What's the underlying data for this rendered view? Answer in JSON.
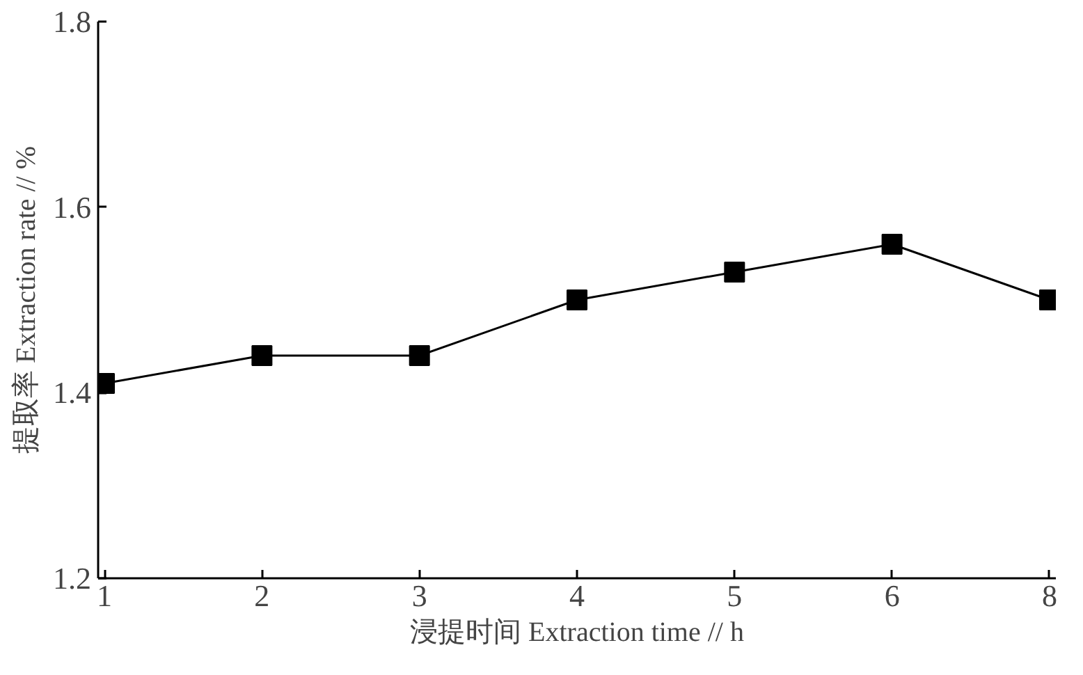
{
  "chart_data": {
    "type": "line",
    "xlabel": "浸提时间 Extraction time // h",
    "ylabel": "提取率 Extraction rate // %",
    "categories": [
      "1",
      "2",
      "3",
      "4",
      "5",
      "6",
      "8"
    ],
    "series": [
      {
        "color": "#000000",
        "values": [
          1.41,
          1.44,
          1.44,
          1.5,
          1.53,
          1.56,
          1.5
        ]
      }
    ],
    "ylim": [
      1.2,
      1.8
    ],
    "yticks": [
      1.2,
      1.4,
      1.6,
      1.8
    ],
    "grid": false,
    "marker": "square",
    "line_style": "solid"
  }
}
